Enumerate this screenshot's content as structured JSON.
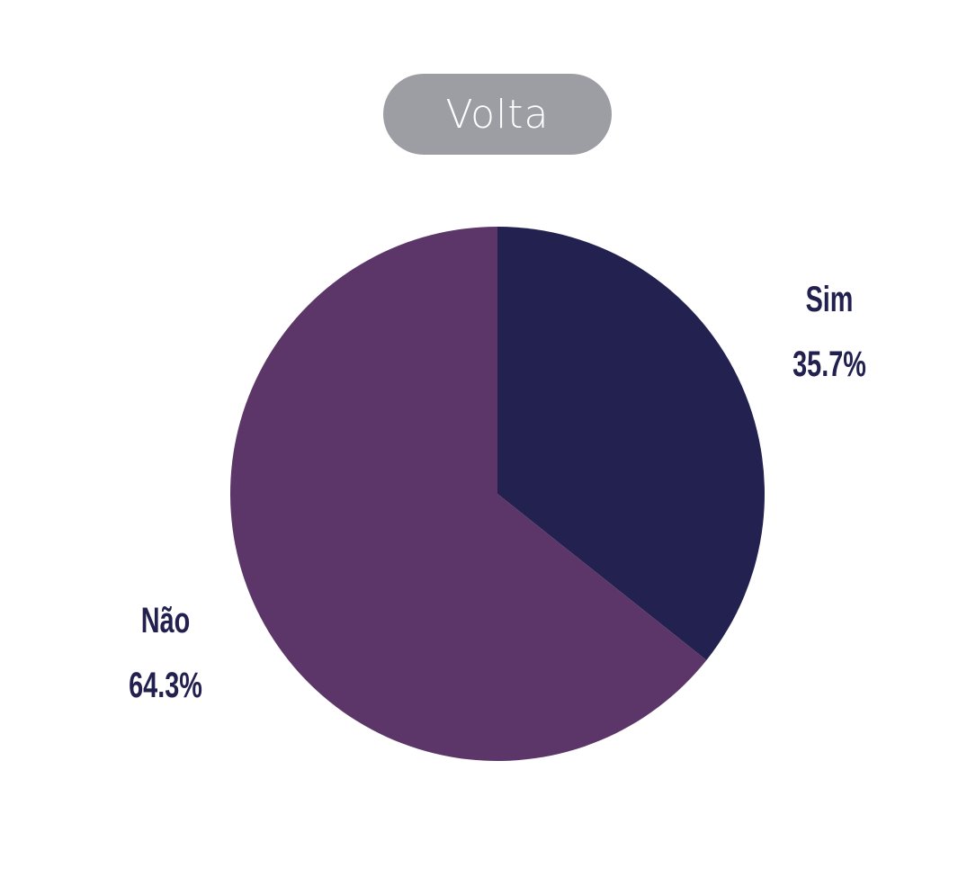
{
  "toggle": {
    "label": "Volta"
  },
  "chart_data": {
    "type": "pie",
    "categories": [
      "Sim",
      "Não"
    ],
    "values": [
      35.7,
      64.3
    ],
    "labels": [
      "35.7%",
      "64.3%"
    ],
    "colors": [
      "#222150",
      "#5c3668"
    ],
    "start_angle_deg": 0,
    "direction": "clockwise"
  }
}
